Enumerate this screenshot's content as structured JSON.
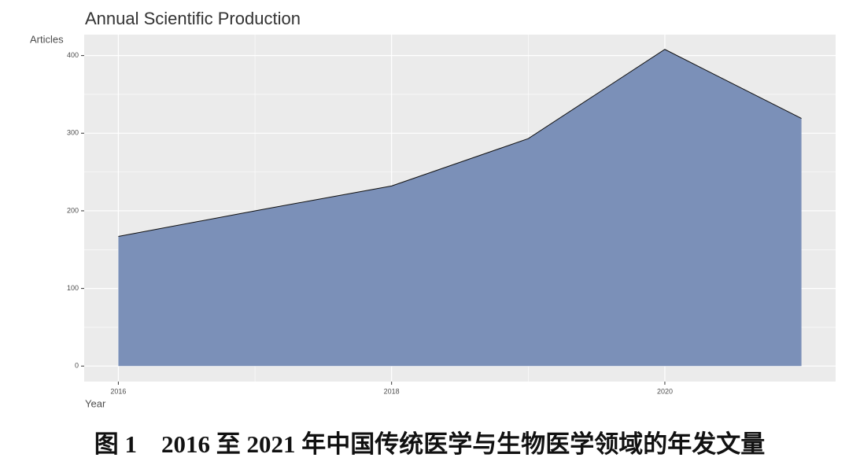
{
  "chart_data": {
    "type": "area",
    "title": "Annual Scientific Production",
    "y_label": "Articles",
    "x_label": "Year",
    "caption": "图 1　2016 至 2021 年中国传统医学与生物医学领域的年发文量",
    "x": [
      2016,
      2017,
      2018,
      2019,
      2020,
      2021
    ],
    "values": [
      167,
      200,
      232,
      293,
      408,
      319
    ],
    "color": "#778cb6",
    "xlim": [
      2015.75,
      2021.25
    ],
    "xticks": [
      2016,
      2018,
      2020
    ],
    "ylim": [
      -20,
      427
    ],
    "yticks": [
      0,
      100,
      200,
      300,
      400
    ],
    "grid": true
  }
}
